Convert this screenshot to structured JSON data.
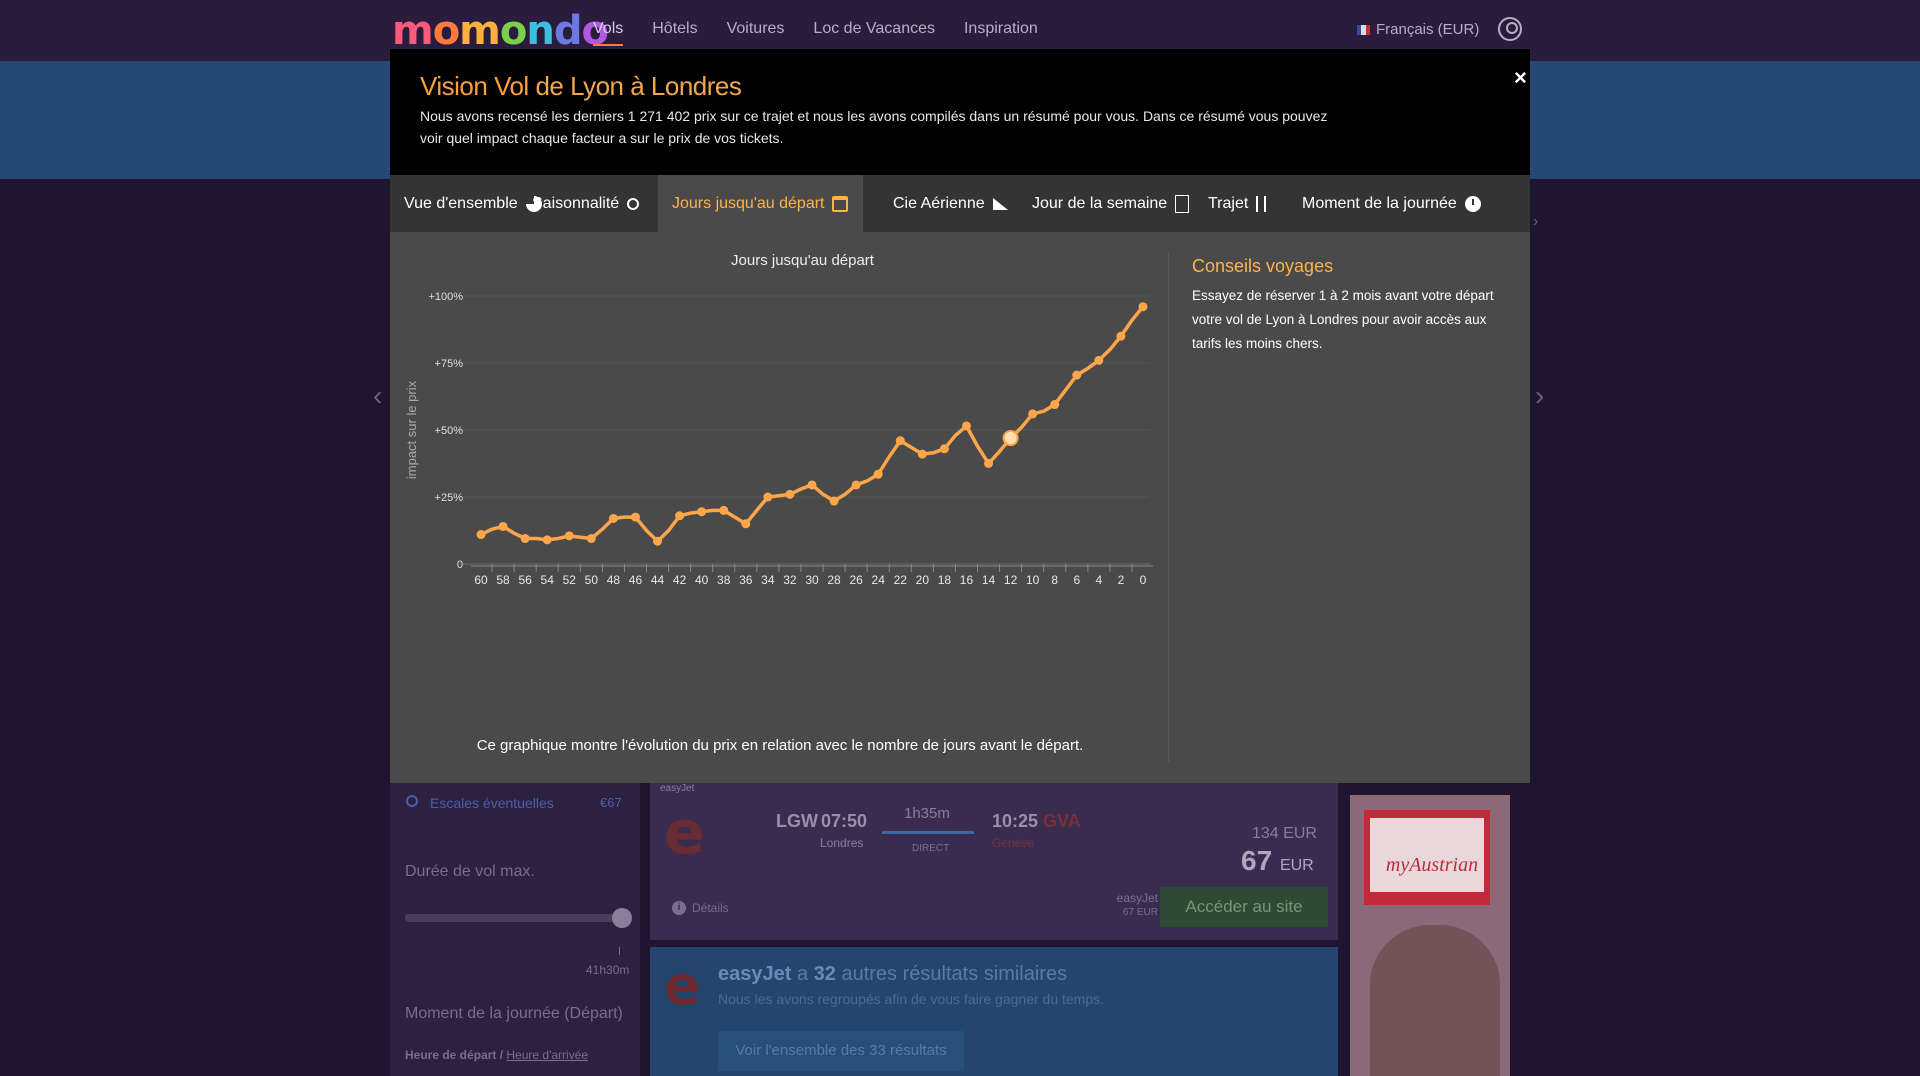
{
  "header": {
    "logo": "momondo",
    "logo_colors": [
      "#ff5a7a",
      "#ff7a3c",
      "#ffb03c",
      "#7ad04a",
      "#3cc0e0",
      "#6a7ae0",
      "#b05ae0"
    ],
    "nav": [
      "Vols",
      "Hôtels",
      "Voitures",
      "Loc de Vacances",
      "Inspiration"
    ],
    "nav_active": "Vols",
    "language": "Français (EUR)"
  },
  "sidebar": {
    "escales_label": "Escales éventuelles",
    "escales_value": "€67",
    "duree_label": "Durée de vol max.",
    "duree_value": "41h30m",
    "moment_label": "Moment de la journée (Départ)",
    "heure_depart": "Heure de départ / ",
    "heure_arrivee": "Heure d'arrivée"
  },
  "flight_card": {
    "airline": "easyJet",
    "logo_letter": "e",
    "dep_code": "LGW",
    "dep_time": "07:50",
    "dep_city": "Londres",
    "duration": "1h35m",
    "stops": "DIRECT",
    "arr_time": "10:25",
    "arr_code": "GVA",
    "arr_city": "Genève",
    "price_old": "134 EUR",
    "price_new": "67",
    "price_currency": "EUR",
    "details": "Détails",
    "site_name": "easyJet",
    "site_price": "67 EUR",
    "cta": "Accéder au site"
  },
  "similar": {
    "airline": "easyJet",
    "connector": " a ",
    "count": "32",
    "suffix": " autres résultats similaires",
    "subtitle": "Nous les avons regroupés afin de vous faire gagner du temps.",
    "button": "Voir l'ensemble des 33 résultats"
  },
  "ad": {
    "brand": "myAustrian"
  },
  "modal": {
    "title_brand": "Vision Vol",
    "title_route": " de Lyon à Londres",
    "description": "Nous avons recensé les derniers 1 271 402 prix sur ce trajet et nous les avons compilés dans un résumé pour vous. Dans ce résumé vous pouvez voir quel impact chaque facteur a sur le prix de vos tickets.",
    "close": "×",
    "tabs": [
      {
        "label": "Vue d'ensemble",
        "icon": "pie-icon"
      },
      {
        "label": "Saisonnalité",
        "icon": "sun-cloud-icon"
      },
      {
        "label": "Jours jusqu'au départ",
        "icon": "calendar-icon"
      },
      {
        "label": "Cie Aérienne",
        "icon": "plane-icon"
      },
      {
        "label": "Jour de la semaine",
        "icon": "week-icon"
      },
      {
        "label": "Trajet",
        "icon": "route-icon"
      },
      {
        "label": "Moment de la journée",
        "icon": "clock-icon"
      }
    ],
    "active_tab": "Jours jusqu'au départ",
    "chart_caption": "Ce graphique montre l'évolution du prix en relation avec le nombre de jours avant le départ.",
    "tips_title": "Conseils voyages",
    "tips_text": "Essayez de réserver 1 à 2 mois avant votre départ votre vol de Lyon à Londres pour avoir accès aux tarifs les moins chers."
  },
  "chart_data": {
    "type": "line",
    "title": "Jours jusqu'au départ",
    "xlabel": "",
    "ylabel": "impact sur le prix",
    "x": [
      60,
      58,
      56,
      54,
      52,
      50,
      48,
      46,
      44,
      42,
      40,
      38,
      36,
      34,
      32,
      30,
      28,
      26,
      24,
      22,
      20,
      18,
      16,
      14,
      12,
      10,
      8,
      6,
      4,
      2,
      0
    ],
    "y_ticks": [
      "0",
      "+25%",
      "+50%",
      "+75%",
      "+100%"
    ],
    "ylim": [
      0,
      100
    ],
    "highlight_x": 12,
    "series": [
      {
        "color": "#ffa54a",
        "points": [
          [
            60,
            11
          ],
          [
            59,
            13
          ],
          [
            58,
            14
          ],
          [
            57,
            11.5
          ],
          [
            56,
            9.5
          ],
          [
            55,
            9.5
          ],
          [
            54,
            9
          ],
          [
            53,
            9.5
          ],
          [
            52,
            10.5
          ],
          [
            51,
            10
          ],
          [
            50,
            9.5
          ],
          [
            49,
            13
          ],
          [
            48,
            17
          ],
          [
            47,
            17.5
          ],
          [
            46,
            17.5
          ],
          [
            45,
            12.5
          ],
          [
            44,
            8.5
          ],
          [
            43,
            12.5
          ],
          [
            42,
            18
          ],
          [
            41,
            19
          ],
          [
            40,
            19.5
          ],
          [
            39,
            20
          ],
          [
            38,
            20
          ],
          [
            37,
            17.5
          ],
          [
            36,
            15
          ],
          [
            35,
            20
          ],
          [
            34,
            25
          ],
          [
            33,
            25.5
          ],
          [
            32,
            26
          ],
          [
            31,
            28
          ],
          [
            30,
            29.5
          ],
          [
            29,
            26
          ],
          [
            28,
            23.5
          ],
          [
            27,
            26
          ],
          [
            26,
            29.5
          ],
          [
            25,
            31
          ],
          [
            24,
            33.5
          ],
          [
            23,
            40
          ],
          [
            22,
            46
          ],
          [
            21,
            43.5
          ],
          [
            20,
            41
          ],
          [
            19,
            41.5
          ],
          [
            18,
            43
          ],
          [
            17,
            48
          ],
          [
            16,
            51.5
          ],
          [
            15,
            44
          ],
          [
            14,
            37.5
          ],
          [
            13,
            42
          ],
          [
            12,
            47
          ],
          [
            11,
            51
          ],
          [
            10,
            56
          ],
          [
            9,
            57
          ],
          [
            8,
            59.5
          ],
          [
            7,
            65
          ],
          [
            6,
            70.5
          ],
          [
            5,
            73
          ],
          [
            4,
            76
          ],
          [
            3,
            80
          ],
          [
            2,
            85
          ],
          [
            1,
            91
          ],
          [
            0,
            96
          ]
        ],
        "markers": [
          [
            60,
            11
          ],
          [
            58,
            14
          ],
          [
            56,
            9.5
          ],
          [
            54,
            9
          ],
          [
            52,
            10.5
          ],
          [
            50,
            9.5
          ],
          [
            48,
            17
          ],
          [
            46,
            17.5
          ],
          [
            44,
            8.5
          ],
          [
            42,
            18
          ],
          [
            40,
            19.5
          ],
          [
            38,
            20
          ],
          [
            36,
            15
          ],
          [
            34,
            25
          ],
          [
            32,
            26
          ],
          [
            30,
            29.5
          ],
          [
            28,
            23.5
          ],
          [
            26,
            29.5
          ],
          [
            24,
            33.5
          ],
          [
            22,
            46
          ],
          [
            20,
            41
          ],
          [
            18,
            43
          ],
          [
            16,
            51.5
          ],
          [
            14,
            37.5
          ],
          [
            12,
            47
          ],
          [
            10,
            56
          ],
          [
            8,
            59.5
          ],
          [
            6,
            70.5
          ],
          [
            4,
            76
          ],
          [
            2,
            85
          ],
          [
            0,
            96
          ]
        ]
      }
    ]
  }
}
